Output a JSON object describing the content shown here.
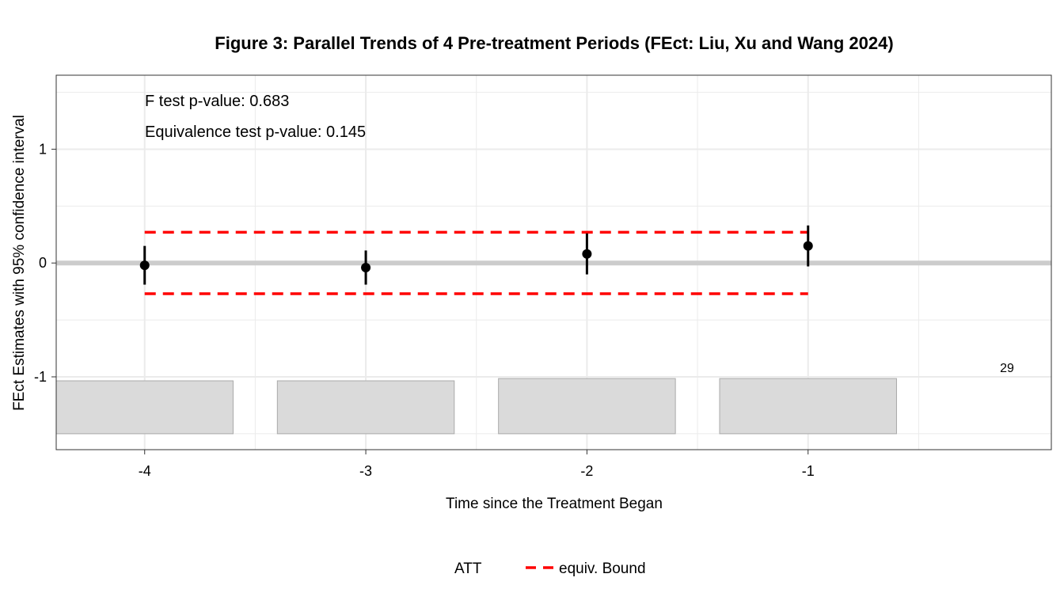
{
  "chart_data": {
    "type": "scatter",
    "title": "Figure 3: Parallel Trends of 4 Pre-treatment Periods (FEct: Liu, Xu and Wang 2024)",
    "xlabel": "Time since the Treatment Began",
    "ylabel": "FEct Estimates with 95% confidence interval",
    "xlim": [
      -4.4,
      0.1
    ],
    "ylim": [
      -1.64,
      1.65
    ],
    "x_ticks": [
      -4,
      -3,
      -2,
      -1
    ],
    "x_tick_labels": [
      "-4",
      "-3",
      "-2",
      "-1"
    ],
    "y_ticks": [
      -1,
      0,
      1
    ],
    "y_tick_labels": [
      "-1",
      "0",
      "1"
    ],
    "grid": true,
    "series": [
      {
        "name": "ATT",
        "x": [
          -4,
          -3,
          -2,
          -1
        ],
        "y": [
          -0.02,
          -0.04,
          0.08,
          0.15
        ],
        "ci_lower": [
          -0.19,
          -0.19,
          -0.1,
          -0.03
        ],
        "ci_upper": [
          0.15,
          0.11,
          0.26,
          0.33
        ]
      }
    ],
    "equivalence_bounds": {
      "name": "equiv. Bound",
      "upper": 0.27,
      "lower": -0.27,
      "x_range": [
        -4,
        -1
      ]
    },
    "count_bars": {
      "x": [
        -4,
        -3,
        -2,
        -1
      ],
      "heights": [
        0.465,
        0.465,
        0.485,
        0.485
      ],
      "base": -1.5,
      "max_label": "29"
    },
    "annotations": [
      "F test p-value: 0.683",
      "Equivalence test p-value: 0.145"
    ],
    "legend": {
      "position": "bottom",
      "items": [
        "ATT",
        "equiv. Bound"
      ]
    },
    "colors": {
      "point": "#000000",
      "bound": "#ff0000",
      "zero_line": "#cccccc",
      "bar_fill": "#dadada",
      "bar_stroke": "#aaaaaa",
      "grid": "#ebebeb",
      "panel_border": "#333333"
    }
  }
}
